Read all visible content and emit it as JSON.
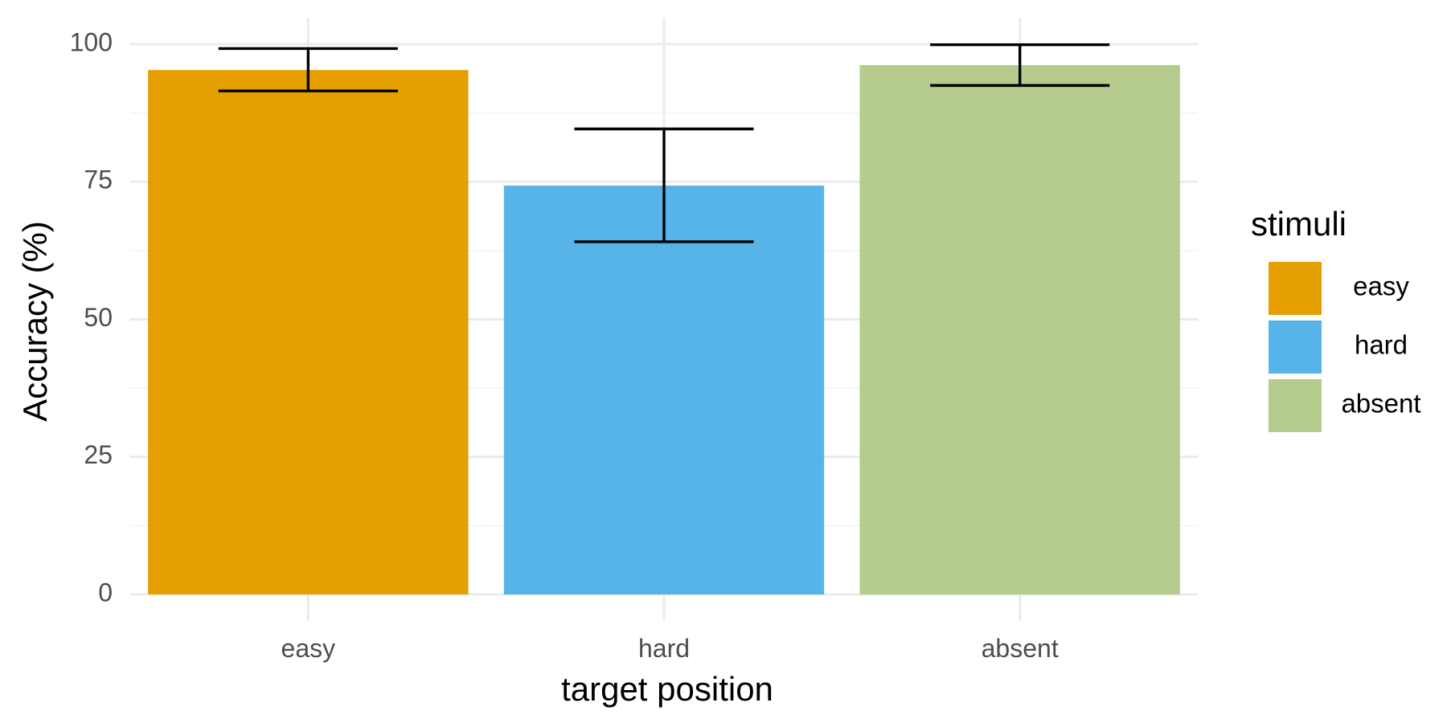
{
  "chart_data": {
    "type": "bar",
    "categories": [
      "easy",
      "hard",
      "absent"
    ],
    "values": [
      95.3,
      74.3,
      96.2
    ],
    "error_bars": [
      {
        "lower": 91.5,
        "upper": 99.2
      },
      {
        "lower": 64.1,
        "upper": 84.6
      },
      {
        "lower": 92.5,
        "upper": 99.9
      }
    ],
    "xlabel": "target position",
    "ylabel": "Accuracy (%)",
    "ylim": [
      0,
      100
    ],
    "yticks": [
      0,
      25,
      50,
      75,
      100
    ],
    "grid": true,
    "legend": {
      "title": "stimuli",
      "placement": "right",
      "entries": [
        "easy",
        "hard",
        "absent"
      ]
    },
    "colors": [
      "#E69F00",
      "#56B4E9",
      "#B5CC8E"
    ]
  }
}
